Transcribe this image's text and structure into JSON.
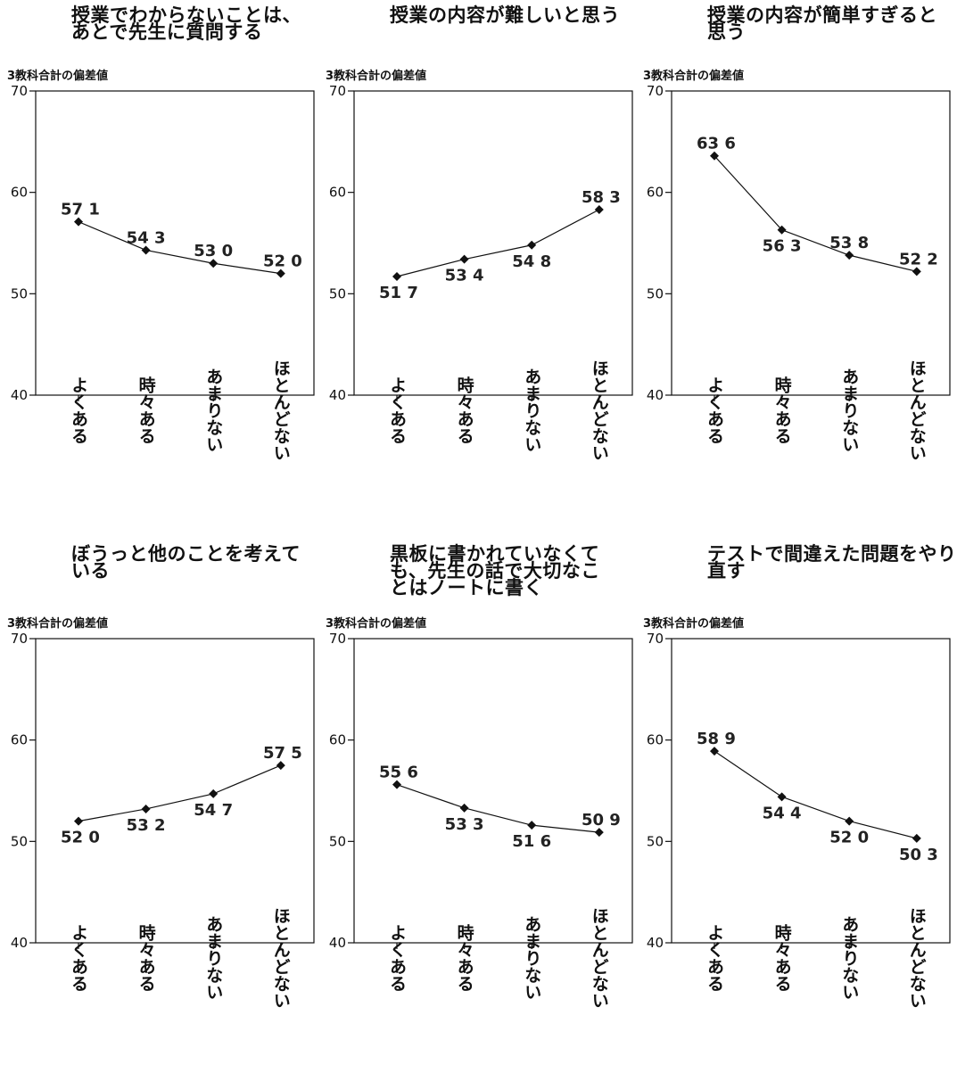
{
  "chart_data": [
    {
      "type": "line",
      "title": "授業でわからないことは、\nあとで先生に質問する",
      "ylabel": "3教科合計の偏差値",
      "categories": [
        "よくある",
        "時々ある",
        "あまりない",
        "ほとんどない"
      ],
      "values": [
        57.1,
        54.3,
        53.0,
        52.0
      ],
      "value_labels": [
        "57 1",
        "54 3",
        "53 0",
        "52 0"
      ],
      "ylim": [
        40,
        70
      ],
      "yticks": [
        40,
        50,
        60,
        70
      ],
      "ytick_labels": [
        "40",
        "50",
        "60",
        "70"
      ],
      "label_positions": [
        "above",
        "above",
        "above",
        "above"
      ]
    },
    {
      "type": "line",
      "title": "授業の内容が難しいと思う",
      "ylabel": "3教科合計の偏差値",
      "categories": [
        "よくある",
        "時々ある",
        "あまりない",
        "ほとんどない"
      ],
      "values": [
        51.7,
        53.4,
        54.8,
        58.3
      ],
      "value_labels": [
        "51 7",
        "53 4",
        "54 8",
        "58 3"
      ],
      "ylim": [
        40,
        70
      ],
      "yticks": [
        40,
        50,
        60,
        70
      ],
      "ytick_labels": [
        "40",
        "50",
        "60",
        "70"
      ],
      "label_positions": [
        "below",
        "below",
        "below",
        "above"
      ]
    },
    {
      "type": "line",
      "title": "授業の内容が簡単すぎると\n思う",
      "ylabel": "3教科合計の偏差値",
      "categories": [
        "よくある",
        "時々ある",
        "あまりない",
        "ほとんどない"
      ],
      "values": [
        63.6,
        56.3,
        53.8,
        52.2
      ],
      "value_labels": [
        "63 6",
        "56 3",
        "53 8",
        "52 2"
      ],
      "ylim": [
        40,
        70
      ],
      "yticks": [
        40,
        50,
        60,
        70
      ],
      "ytick_labels": [
        "40",
        "50",
        "60",
        "70"
      ],
      "label_positions": [
        "above",
        "below",
        "above",
        "above"
      ]
    },
    {
      "type": "line",
      "title": "ぼうっと他のことを考えて\nいる",
      "ylabel": "3教科合計の偏差値",
      "categories": [
        "よくある",
        "時々ある",
        "あまりない",
        "ほとんどない"
      ],
      "values": [
        52.0,
        53.2,
        54.7,
        57.5
      ],
      "value_labels": [
        "52 0",
        "53 2",
        "54 7",
        "57 5"
      ],
      "ylim": [
        40,
        70
      ],
      "yticks": [
        40,
        50,
        60,
        70
      ],
      "ytick_labels": [
        "40",
        "50",
        "60",
        "70"
      ],
      "label_positions": [
        "below",
        "below",
        "below",
        "above"
      ]
    },
    {
      "type": "line",
      "title": "黒板に書かれていなくて\nも、先生の話で大切なこ\nとはノートに書く",
      "ylabel": "3教科合計の偏差値",
      "categories": [
        "よくある",
        "時々ある",
        "あまりない",
        "ほとんどない"
      ],
      "values": [
        55.6,
        53.3,
        51.6,
        50.9
      ],
      "value_labels": [
        "55 6",
        "53 3",
        "51 6",
        "50 9"
      ],
      "ylim": [
        40,
        70
      ],
      "yticks": [
        40,
        50,
        60,
        70
      ],
      "ytick_labels": [
        "40",
        "50",
        "60",
        "70"
      ],
      "label_positions": [
        "above",
        "below",
        "below",
        "above"
      ]
    },
    {
      "type": "line",
      "title": "テストで間違えた問題をやり\n直す",
      "ylabel": "3教科合計の偏差値",
      "categories": [
        "よくある",
        "時々ある",
        "あまりない",
        "ほとんどない"
      ],
      "values": [
        58.9,
        54.4,
        52.0,
        50.3
      ],
      "value_labels": [
        "58 9",
        "54 4",
        "52 0",
        "50 3"
      ],
      "ylim": [
        40,
        70
      ],
      "yticks": [
        40,
        50,
        60,
        70
      ],
      "ytick_labels": [
        "40",
        "50",
        "60",
        "70"
      ],
      "label_positions": [
        "above",
        "below",
        "below",
        "below"
      ]
    }
  ]
}
